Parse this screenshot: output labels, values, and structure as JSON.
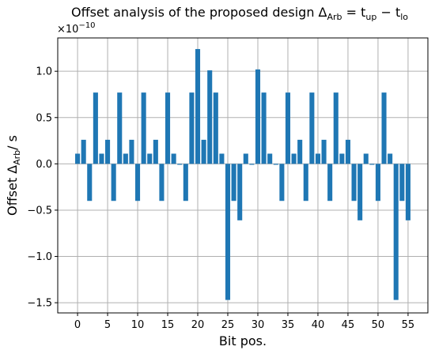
{
  "chart_data": {
    "type": "bar",
    "title": "Offset analysis of the proposed design Δ_Arb = t_up − t_lo",
    "title_parts": {
      "prefix": "Offset analysis of the proposed design Δ",
      "sub1": "Arb",
      "eq": " = t",
      "sub2": "up",
      "minus": " − t",
      "sub3": "lo"
    },
    "xlabel": "Bit pos.",
    "ylabel_parts": {
      "prefix": "Offset Δ",
      "sub": "Arb",
      "suffix": "/ s"
    },
    "y_scale_label": "×10",
    "y_scale_exp": "−10",
    "x": [
      0,
      1,
      2,
      3,
      4,
      5,
      6,
      7,
      8,
      9,
      10,
      11,
      12,
      13,
      14,
      15,
      16,
      17,
      18,
      19,
      20,
      21,
      22,
      23,
      24,
      25,
      26,
      27,
      28,
      29,
      30,
      31,
      32,
      33,
      34,
      35,
      36,
      37,
      38,
      39,
      40,
      41,
      42,
      43,
      44,
      45,
      46,
      47,
      48,
      49,
      50,
      51,
      52,
      53,
      54,
      55
    ],
    "values": [
      0.11,
      0.26,
      -0.4,
      0.77,
      0.11,
      0.26,
      -0.4,
      0.77,
      0.11,
      0.26,
      -0.4,
      0.77,
      0.11,
      0.26,
      -0.4,
      0.77,
      0.11,
      -0.01,
      -0.4,
      0.77,
      1.24,
      0.26,
      1.01,
      0.77,
      0.11,
      -1.47,
      -0.4,
      -0.61,
      0.11,
      -0.01,
      1.02,
      0.77,
      0.11,
      -0.01,
      -0.4,
      0.77,
      0.11,
      0.26,
      -0.4,
      0.77,
      0.11,
      0.26,
      -0.4,
      0.77,
      0.11,
      0.26,
      -0.4,
      -0.61,
      0.11,
      -0.01,
      -0.4,
      0.77,
      0.11,
      -1.47,
      -0.4,
      -0.61
    ],
    "value_multiplier": "1e-10",
    "xlim": [
      -3.3,
      58.3
    ],
    "ylim": [
      -1.61,
      1.36
    ],
    "xticks": [
      0,
      5,
      10,
      15,
      20,
      25,
      30,
      35,
      40,
      45,
      50,
      55
    ],
    "xtick_labels": [
      "0",
      "5",
      "10",
      "15",
      "20",
      "25",
      "30",
      "35",
      "40",
      "45",
      "50",
      "55"
    ],
    "yticks": [
      -1.5,
      -1.0,
      -0.5,
      0.0,
      0.5,
      1.0
    ],
    "ytick_labels": [
      "−1.5",
      "−1.0",
      "−0.5",
      "0.0",
      "0.5",
      "1.0"
    ],
    "grid": true,
    "bar_color": "#1f77b4"
  }
}
